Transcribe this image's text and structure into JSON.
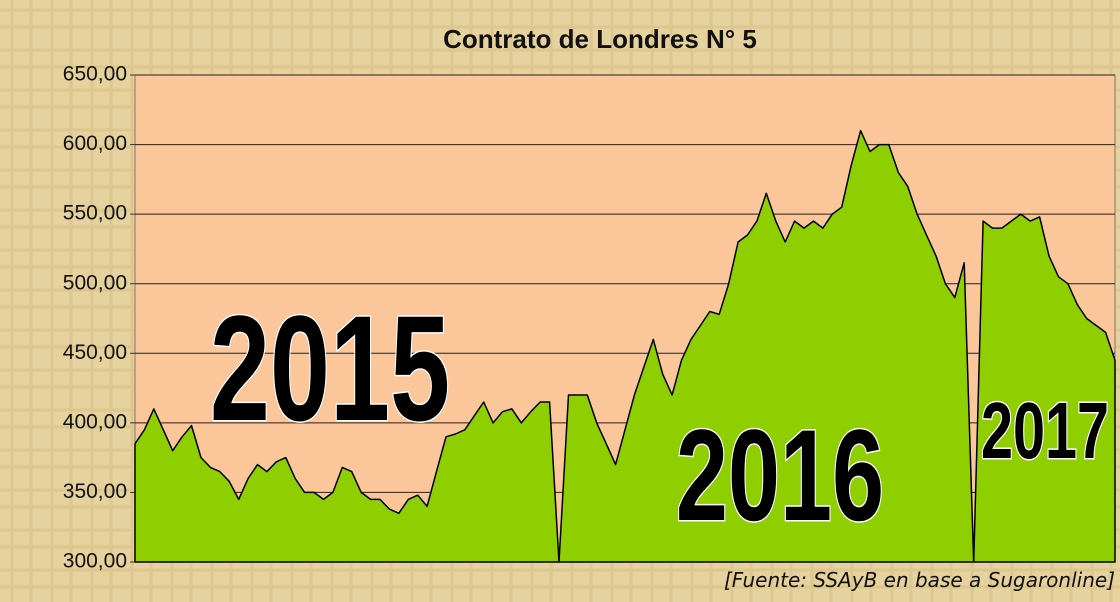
{
  "chart_data": {
    "type": "area",
    "title": "Contrato de Londres N° 5",
    "values": [
      385,
      395,
      410,
      395,
      380,
      390,
      398,
      375,
      368,
      365,
      358,
      345,
      360,
      370,
      365,
      372,
      375,
      360,
      350,
      350,
      345,
      350,
      368,
      365,
      350,
      345,
      345,
      338,
      335,
      345,
      348,
      340,
      365,
      390,
      392,
      395,
      405,
      415,
      400,
      408,
      410,
      400,
      408,
      415,
      415,
      300,
      420,
      420,
      420,
      400,
      385,
      370,
      395,
      420,
      440,
      460,
      435,
      420,
      445,
      460,
      470,
      480,
      478,
      500,
      530,
      535,
      545,
      565,
      545,
      530,
      545,
      540,
      545,
      540,
      550,
      555,
      585,
      610,
      595,
      600,
      600,
      580,
      570,
      550,
      535,
      520,
      500,
      490,
      515,
      300,
      545,
      540,
      540,
      545,
      550,
      545,
      548,
      520,
      505,
      500,
      485,
      475,
      470,
      465,
      445
    ],
    "color": "#8fce00",
    "ylim": [
      300,
      650
    ],
    "yticks": [
      {
        "value": 300,
        "label": "300,00"
      },
      {
        "value": 350,
        "label": "350,00"
      },
      {
        "value": 400,
        "label": "400,00"
      },
      {
        "value": 450,
        "label": "450,00"
      },
      {
        "value": 500,
        "label": "500,00"
      },
      {
        "value": 550,
        "label": "550,00"
      },
      {
        "value": 600,
        "label": "600,00"
      },
      {
        "value": 650,
        "label": "650,00"
      }
    ],
    "grid": true,
    "annotations": [
      "2015",
      "2016",
      "2017"
    ],
    "source": "[Fuente: SSAyB en base a Sugaronline]"
  }
}
